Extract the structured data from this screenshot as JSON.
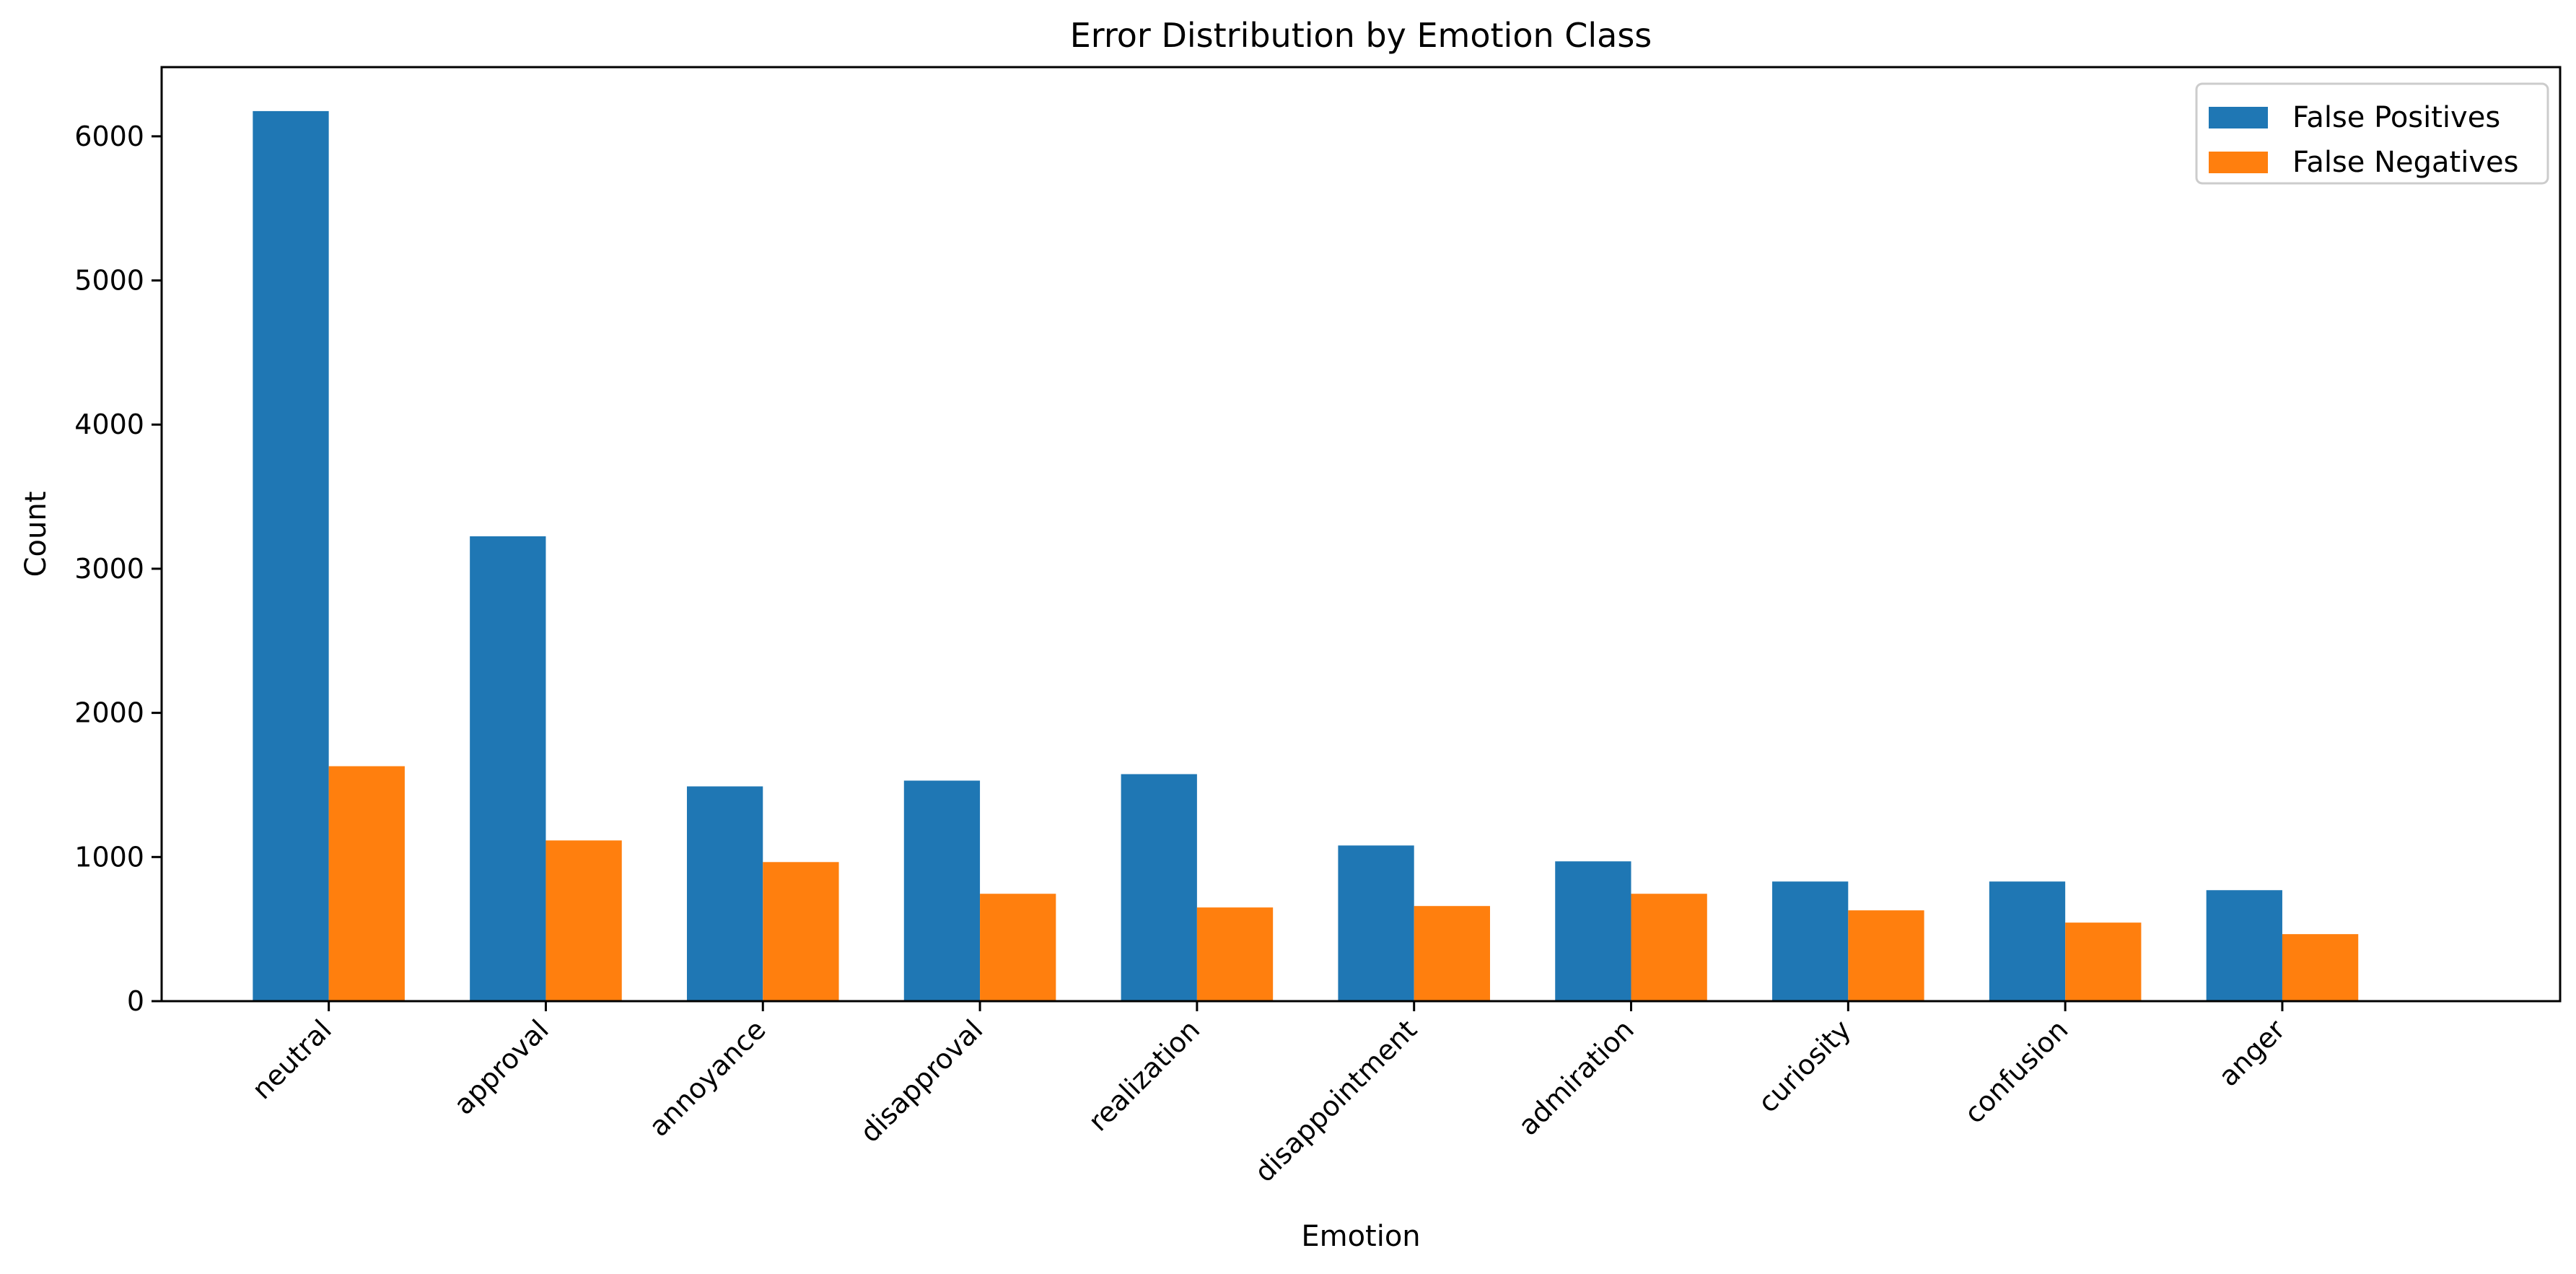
{
  "chart_data": {
    "type": "bar",
    "title": "Error Distribution by Emotion Class",
    "xlabel": "Emotion",
    "ylabel": "Count",
    "categories": [
      "neutral",
      "approval",
      "annoyance",
      "disapproval",
      "realization",
      "disappointment",
      "admiration",
      "curiosity",
      "confusion",
      "anger"
    ],
    "series": [
      {
        "name": "False Positives",
        "color": "#1f77b4",
        "values": [
          6175,
          3225,
          1490,
          1530,
          1575,
          1080,
          970,
          830,
          830,
          770
        ]
      },
      {
        "name": "False Negatives",
        "color": "#ff7f0e",
        "values": [
          1630,
          1115,
          965,
          745,
          650,
          660,
          745,
          630,
          545,
          465
        ]
      }
    ],
    "ylim": [
      0,
      6480
    ],
    "yticks": [
      0,
      1000,
      2000,
      3000,
      4000,
      5000,
      6000
    ],
    "grid": false,
    "legend_position": "top-right"
  }
}
